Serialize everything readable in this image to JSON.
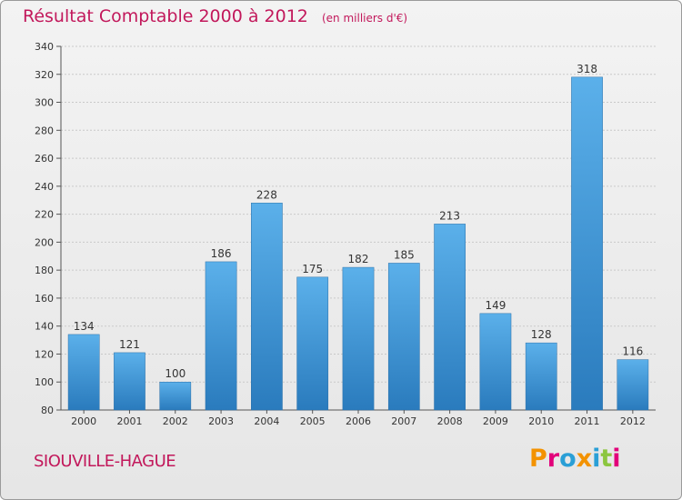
{
  "title": "Résultat Comptable 2000 à 2012",
  "subtitle": "(en milliers d'€)",
  "commune": "SIOUVILLE-HAGUE",
  "brand": {
    "letters": [
      "P",
      "r",
      "o",
      "x",
      "i",
      "t",
      "i"
    ],
    "colors": [
      "#f39200",
      "#e2007a",
      "#2a9fd6",
      "#f39200",
      "#2a9fd6",
      "#8cc63f",
      "#e2007a"
    ]
  },
  "colors": {
    "accent": "#c2185b",
    "bar_top": "#5bb0ea",
    "bar_bottom": "#2a7bbd",
    "grid": "#c9c9c9"
  },
  "chart_data": {
    "type": "bar",
    "title": "Résultat Comptable 2000 à 2012",
    "subtitle": "(en milliers d'€)",
    "xlabel": "",
    "ylabel": "",
    "categories": [
      "2000",
      "2001",
      "2002",
      "2003",
      "2004",
      "2005",
      "2006",
      "2007",
      "2008",
      "2009",
      "2010",
      "2011",
      "2012"
    ],
    "values": [
      134,
      121,
      100,
      186,
      228,
      175,
      182,
      185,
      213,
      149,
      128,
      318,
      116
    ],
    "ylim": [
      80,
      340
    ],
    "yticks": [
      80,
      100,
      120,
      140,
      160,
      180,
      200,
      220,
      240,
      260,
      280,
      300,
      320,
      340
    ],
    "grid": true,
    "legend": "none"
  }
}
